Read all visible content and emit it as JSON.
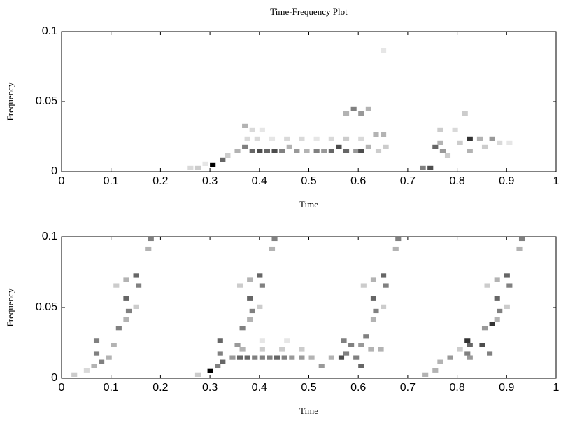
{
  "chart_data": [
    {
      "type": "heatmap",
      "title": "Time-Frequency Plot",
      "xlabel": "Time",
      "ylabel": "Frequency",
      "xlim": [
        0,
        1
      ],
      "ylim": [
        0,
        0.1
      ],
      "xticks": [
        0,
        0.1,
        0.2,
        0.3,
        0.4,
        0.5,
        0.6,
        0.7,
        0.8,
        0.9,
        1
      ],
      "yticks": [
        0,
        0.05,
        0.1
      ],
      "cells": {
        "x": [
          0.255,
          0.27,
          0.285,
          0.3,
          0.32,
          0.33,
          0.35,
          0.365,
          0.38,
          0.395,
          0.41,
          0.425,
          0.44,
          0.455,
          0.47,
          0.49,
          0.51,
          0.525,
          0.54,
          0.555,
          0.57,
          0.59,
          0.6,
          0.615,
          0.635,
          0.65,
          0.37,
          0.39,
          0.42,
          0.45,
          0.48,
          0.51,
          0.54,
          0.57,
          0.6,
          0.365,
          0.38,
          0.4,
          0.63,
          0.645,
          0.57,
          0.585,
          0.6,
          0.615,
          0.645,
          0.725,
          0.74,
          0.75,
          0.765,
          0.76,
          0.775,
          0.82,
          0.84,
          0.865,
          0.82,
          0.8,
          0.85,
          0.88,
          0.81,
          0.79,
          0.76,
          0.9
        ],
        "y": [
          0.001,
          0.001,
          0.004,
          0.0035,
          0.007,
          0.01,
          0.013,
          0.016,
          0.013,
          0.013,
          0.013,
          0.013,
          0.013,
          0.016,
          0.013,
          0.013,
          0.013,
          0.013,
          0.013,
          0.016,
          0.013,
          0.013,
          0.013,
          0.016,
          0.013,
          0.016,
          0.022,
          0.022,
          0.022,
          0.022,
          0.022,
          0.022,
          0.022,
          0.022,
          0.022,
          0.031,
          0.028,
          0.028,
          0.025,
          0.025,
          0.04,
          0.043,
          0.04,
          0.043,
          0.085,
          0.001,
          0.001,
          0.016,
          0.013,
          0.019,
          0.01,
          0.022,
          0.022,
          0.022,
          0.013,
          0.019,
          0.016,
          0.019,
          0.04,
          0.028,
          0.028,
          0.019
        ],
        "values": [
          0.15,
          0.2,
          0.1,
          1.0,
          0.6,
          0.2,
          0.3,
          0.5,
          0.6,
          0.7,
          0.6,
          0.7,
          0.5,
          0.3,
          0.4,
          0.3,
          0.5,
          0.4,
          0.6,
          0.7,
          0.6,
          0.4,
          0.7,
          0.3,
          0.2,
          0.2,
          0.15,
          0.15,
          0.1,
          0.15,
          0.15,
          0.1,
          0.15,
          0.2,
          0.15,
          0.3,
          0.15,
          0.1,
          0.3,
          0.3,
          0.3,
          0.5,
          0.4,
          0.3,
          0.1,
          0.5,
          0.7,
          0.6,
          0.4,
          0.3,
          0.2,
          0.8,
          0.3,
          0.4,
          0.3,
          0.2,
          0.2,
          0.15,
          0.2,
          0.15,
          0.2,
          0.1
        ]
      }
    },
    {
      "type": "heatmap",
      "xlabel": "Time",
      "ylabel": "Frequency",
      "xlim": [
        0,
        1
      ],
      "ylim": [
        0,
        0.1
      ],
      "xticks": [
        0,
        0.1,
        0.2,
        0.3,
        0.4,
        0.5,
        0.6,
        0.7,
        0.8,
        0.9,
        1
      ],
      "yticks": [
        0,
        0.05,
        0.1
      ],
      "cells": {
        "x": [
          0.02,
          0.045,
          0.06,
          0.075,
          0.065,
          0.09,
          0.065,
          0.1,
          0.11,
          0.125,
          0.13,
          0.125,
          0.145,
          0.105,
          0.125,
          0.145,
          0.15,
          0.17,
          0.175,
          0.27,
          0.295,
          0.31,
          0.32,
          0.315,
          0.34,
          0.315,
          0.35,
          0.36,
          0.375,
          0.38,
          0.375,
          0.395,
          0.355,
          0.375,
          0.395,
          0.4,
          0.42,
          0.425,
          0.355,
          0.37,
          0.385,
          0.4,
          0.415,
          0.43,
          0.445,
          0.46,
          0.48,
          0.5,
          0.52,
          0.54,
          0.36,
          0.4,
          0.44,
          0.48,
          0.4,
          0.45,
          0.56,
          0.57,
          0.58,
          0.59,
          0.6,
          0.565,
          0.6,
          0.61,
          0.625,
          0.63,
          0.625,
          0.645,
          0.605,
          0.625,
          0.645,
          0.65,
          0.67,
          0.675,
          0.62,
          0.64,
          0.73,
          0.75,
          0.76,
          0.78,
          0.815,
          0.815,
          0.82,
          0.845,
          0.86,
          0.85,
          0.865,
          0.875,
          0.88,
          0.875,
          0.895,
          0.855,
          0.875,
          0.895,
          0.9,
          0.92,
          0.925,
          0.82,
          0.8
        ],
        "y": [
          0.001,
          0.004,
          0.007,
          0.01,
          0.016,
          0.013,
          0.025,
          0.022,
          0.034,
          0.04,
          0.046,
          0.055,
          0.049,
          0.064,
          0.068,
          0.071,
          0.064,
          0.09,
          0.097,
          0.001,
          0.0035,
          0.007,
          0.01,
          0.016,
          0.013,
          0.025,
          0.022,
          0.034,
          0.04,
          0.046,
          0.055,
          0.049,
          0.064,
          0.068,
          0.071,
          0.064,
          0.09,
          0.097,
          0.013,
          0.013,
          0.013,
          0.013,
          0.013,
          0.013,
          0.013,
          0.013,
          0.013,
          0.013,
          0.007,
          0.013,
          0.019,
          0.019,
          0.019,
          0.019,
          0.025,
          0.025,
          0.013,
          0.016,
          0.022,
          0.013,
          0.007,
          0.025,
          0.022,
          0.028,
          0.04,
          0.046,
          0.055,
          0.049,
          0.064,
          0.068,
          0.071,
          0.064,
          0.09,
          0.097,
          0.019,
          0.019,
          0.001,
          0.004,
          0.01,
          0.013,
          0.016,
          0.025,
          0.022,
          0.022,
          0.016,
          0.034,
          0.037,
          0.04,
          0.046,
          0.055,
          0.049,
          0.064,
          0.068,
          0.071,
          0.064,
          0.09,
          0.097,
          0.013,
          0.019
        ],
        "values": [
          0.2,
          0.15,
          0.3,
          0.5,
          0.5,
          0.3,
          0.5,
          0.3,
          0.5,
          0.3,
          0.5,
          0.6,
          0.2,
          0.2,
          0.3,
          0.6,
          0.5,
          0.3,
          0.5,
          0.2,
          1.0,
          0.5,
          0.6,
          0.5,
          0.4,
          0.6,
          0.4,
          0.5,
          0.3,
          0.5,
          0.6,
          0.2,
          0.2,
          0.3,
          0.6,
          0.5,
          0.3,
          0.5,
          0.6,
          0.6,
          0.5,
          0.5,
          0.5,
          0.6,
          0.5,
          0.4,
          0.4,
          0.3,
          0.4,
          0.3,
          0.3,
          0.2,
          0.2,
          0.2,
          0.1,
          0.1,
          0.7,
          0.5,
          0.5,
          0.5,
          0.6,
          0.5,
          0.4,
          0.5,
          0.3,
          0.5,
          0.6,
          0.2,
          0.2,
          0.3,
          0.6,
          0.5,
          0.3,
          0.5,
          0.3,
          0.3,
          0.3,
          0.3,
          0.3,
          0.4,
          0.5,
          0.8,
          0.6,
          0.7,
          0.5,
          0.4,
          0.8,
          0.3,
          0.5,
          0.6,
          0.2,
          0.2,
          0.3,
          0.6,
          0.5,
          0.3,
          0.5,
          0.4,
          0.2
        ]
      }
    }
  ]
}
